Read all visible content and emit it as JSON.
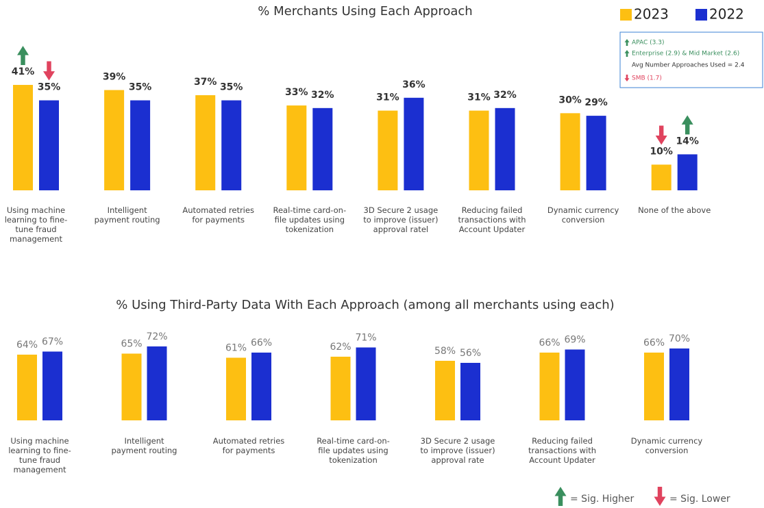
{
  "chart_data": [
    {
      "type": "bar",
      "title": "% Merchants Using Each Approach",
      "categories": [
        "Using machine learning to fine-tune fraud management",
        "Intelligent payment routing",
        "Automated retries for payments",
        "Real-time card-on-file updates using tokenization",
        "3D Secure 2 usage to improve (issuer) approval ratel",
        "Reducing failed transactions with Account Updater",
        "Dynamic currency conversion",
        "None of the above"
      ],
      "series": [
        {
          "name": "2023",
          "color": "#FDBF12",
          "values": [
            41,
            39,
            37,
            33,
            31,
            31,
            30,
            10
          ],
          "value_labels": [
            "41%",
            "39%",
            "37%",
            "33%",
            "31%",
            "31%",
            "30%",
            "10%"
          ],
          "sig": [
            "up",
            null,
            null,
            null,
            null,
            null,
            null,
            "down"
          ]
        },
        {
          "name": "2022",
          "color": "#1B2FD0",
          "values": [
            35,
            35,
            35,
            32,
            36,
            32,
            29,
            14
          ],
          "value_labels": [
            "35%",
            "35%",
            "35%",
            "32%",
            "36%",
            "32%",
            "29%",
            "14%"
          ],
          "sig": [
            "down",
            null,
            null,
            null,
            null,
            null,
            null,
            "up"
          ]
        }
      ],
      "ylim": [
        0,
        45
      ],
      "legend": "top-right",
      "annotations": [
        {
          "text": "APAC (3.3)",
          "sig": "up"
        },
        {
          "text": "Enterprise (2.9) & Mid Market (2.6)",
          "sig": "up"
        },
        {
          "text": "Avg Number Approaches Used = 2.4",
          "sig": null
        },
        {
          "text": "SMB (1.7)",
          "sig": "down"
        }
      ]
    },
    {
      "type": "bar",
      "title": "% Using Third-Party Data With Each Approach (among all merchants using each)",
      "categories": [
        "Using machine learning to fine-tune fraud management",
        "Intelligent payment routing",
        "Automated retries for payments",
        "Real-time card-on-file updates using tokenization",
        "3D Secure 2 usage to improve (issuer) approval rate",
        "Reducing failed transactions with Account Updater",
        "Dynamic currency conversion"
      ],
      "series": [
        {
          "name": "2023",
          "color": "#FDBF12",
          "values": [
            64,
            65,
            61,
            62,
            58,
            66,
            66
          ],
          "value_labels": [
            "64%",
            "65%",
            "61%",
            "62%",
            "58%",
            "66%",
            "66%"
          ]
        },
        {
          "name": "2022",
          "color": "#1B2FD0",
          "values": [
            67,
            72,
            66,
            71,
            56,
            69,
            70
          ],
          "value_labels": [
            "67%",
            "72%",
            "66%",
            "71%",
            "56%",
            "69%",
            "70%"
          ]
        }
      ],
      "ylim": [
        0,
        80
      ]
    }
  ],
  "sig_legend": {
    "up": "= Sig. Higher",
    "down": "= Sig. Lower"
  }
}
